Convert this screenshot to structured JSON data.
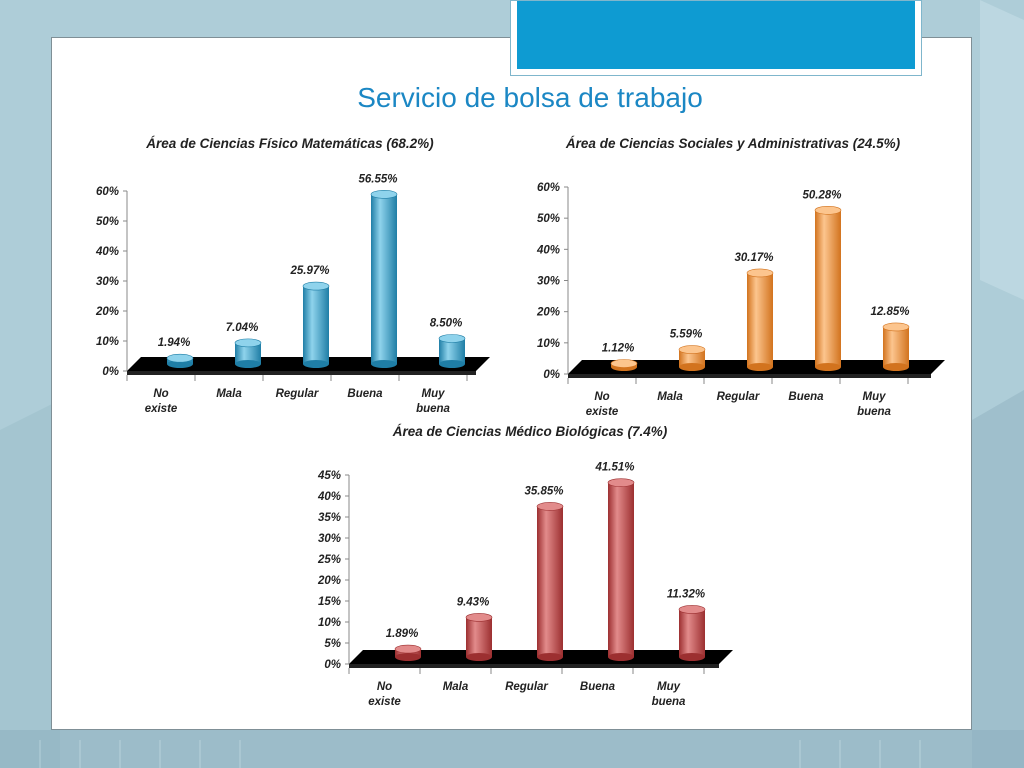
{
  "slide": {
    "title": "Servicio de bolsa de trabajo"
  },
  "colors": {
    "background": "#a9c9d4",
    "title_bar": "#0e9bd2",
    "title_text": "#1b87c4"
  },
  "chart_data": [
    {
      "type": "bar",
      "title": "Área de Ciencias Físico Matemáticas    (68.2%)",
      "categories": [
        "No existe",
        "Mala",
        "Regular",
        "Buena",
        "Muy buena"
      ],
      "values": [
        1.94,
        7.04,
        25.97,
        56.55,
        8.5
      ],
      "value_labels": [
        "1.94%",
        "7.04%",
        "25.97%",
        "56.55%",
        "8.50%"
      ],
      "ylim": [
        0,
        60
      ],
      "y_ticks": [
        "0%",
        "10%",
        "20%",
        "30%",
        "40%",
        "50%",
        "60%"
      ],
      "color": "#3fa7cf",
      "color_dark": "#1f7ea6",
      "color_light": "#8fd3ec"
    },
    {
      "type": "bar",
      "title": "Área de Ciencias Sociales y Administrativas  (24.5%)",
      "categories": [
        "No existe",
        "Mala",
        "Regular",
        "Buena",
        "Muy buena"
      ],
      "values": [
        1.12,
        5.59,
        30.17,
        50.28,
        12.85
      ],
      "value_labels": [
        "1.12%",
        "5.59%",
        "30.17%",
        "50.28%",
        "12.85%"
      ],
      "ylim": [
        0,
        60
      ],
      "y_ticks": [
        "0%",
        "10%",
        "20%",
        "30%",
        "40%",
        "50%",
        "60%"
      ],
      "color": "#f39a45",
      "color_dark": "#d2731e",
      "color_light": "#fcc58e"
    },
    {
      "type": "bar",
      "title": "Área de Ciencias Médico Biológicas  (7.4%)",
      "categories": [
        "No existe",
        "Mala",
        "Regular",
        "Buena",
        "Muy buena"
      ],
      "values": [
        1.89,
        9.43,
        35.85,
        41.51,
        11.32
      ],
      "value_labels": [
        "1.89%",
        "9.43%",
        "35.85%",
        "41.51%",
        "11.32%"
      ],
      "ylim": [
        0,
        45
      ],
      "y_ticks": [
        "0%",
        "5%",
        "10%",
        "15%",
        "20%",
        "25%",
        "30%",
        "35%",
        "40%",
        "45%"
      ],
      "color": "#c8494a",
      "color_dark": "#9c2f30",
      "color_light": "#e28b8b"
    }
  ]
}
